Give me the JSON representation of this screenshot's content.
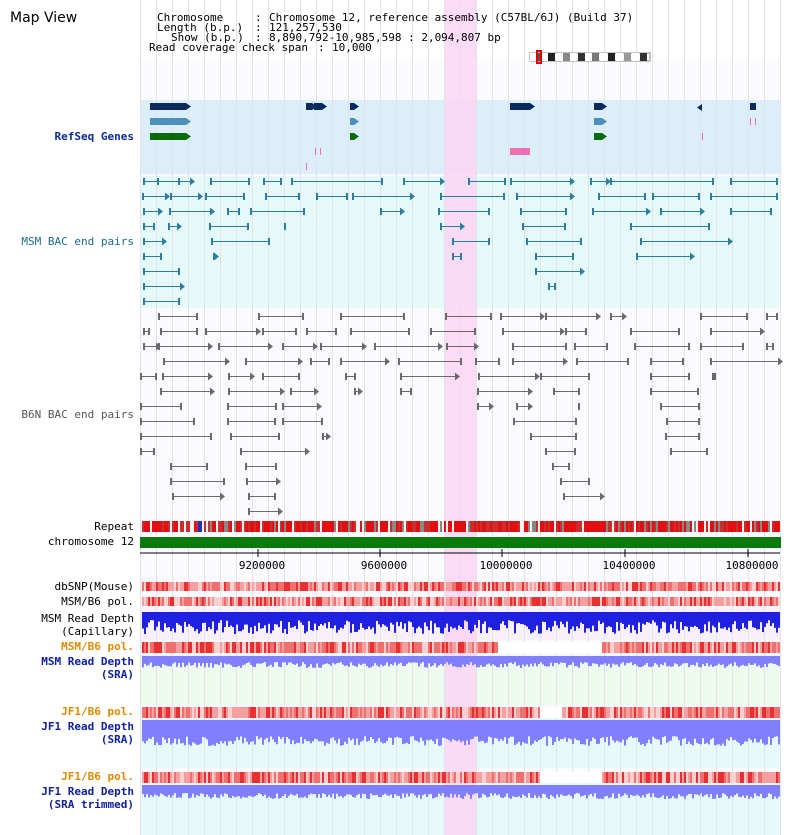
{
  "title": "Map View",
  "info": {
    "chromosome_label": "Chromosome",
    "chromosome_value": "Chromosome 12, reference assembly (C57BL/6J) (Build 37)",
    "length_label": "Length (b.p.)",
    "length_value": "121,257,530",
    "show_label": "Show (b.p.)",
    "show_value": "8,890,792-10,985,598 : 2,094,807 bp",
    "coverage_label": "Read coverage check span",
    "coverage_value": "10,000"
  },
  "tracks": {
    "refseq": "RefSeq Genes",
    "msm_bac": "MSM BAC end pairs",
    "b6n_bac": "B6N BAC end pairs",
    "repeat": "Repeat",
    "chromosome": "chromosome 12",
    "dbsnp": "dbSNP(Mouse)",
    "msm_b6_pol": "MSM/B6 pol.",
    "msm_read_depth_cap_1": "MSM Read Depth",
    "msm_read_depth_cap_2": "(Capillary)",
    "msm_b6_pol_sra": "MSM/B6 pol.",
    "msm_read_depth_sra_1": "MSM Read Depth",
    "msm_read_depth_sra_2": "(SRA)",
    "jf1_b6_pol": "JF1/B6 pol.",
    "jf1_read_depth_1": "JF1 Read Depth",
    "jf1_read_depth_2": "(SRA)",
    "jf1_b6_pol_2": "JF1/B6 pol.",
    "jf1_read_depth_trim_1": "JF1 Read Depth",
    "jf1_read_depth_trim_2": "(SRA trimmed)"
  },
  "axis_ticks": [
    "9200000",
    "9600000",
    "10000000",
    "10400000",
    "10800000"
  ],
  "colors": {
    "refseq_bg": "#dbeefa",
    "msm_bg": "#e6fafa",
    "highlight": "#fbd5f3",
    "chromosome_bar": "#0a7a0a",
    "repeat_red": "#e01010",
    "depth_blue": "#2020e0",
    "depth_light": "#8080ff"
  }
}
